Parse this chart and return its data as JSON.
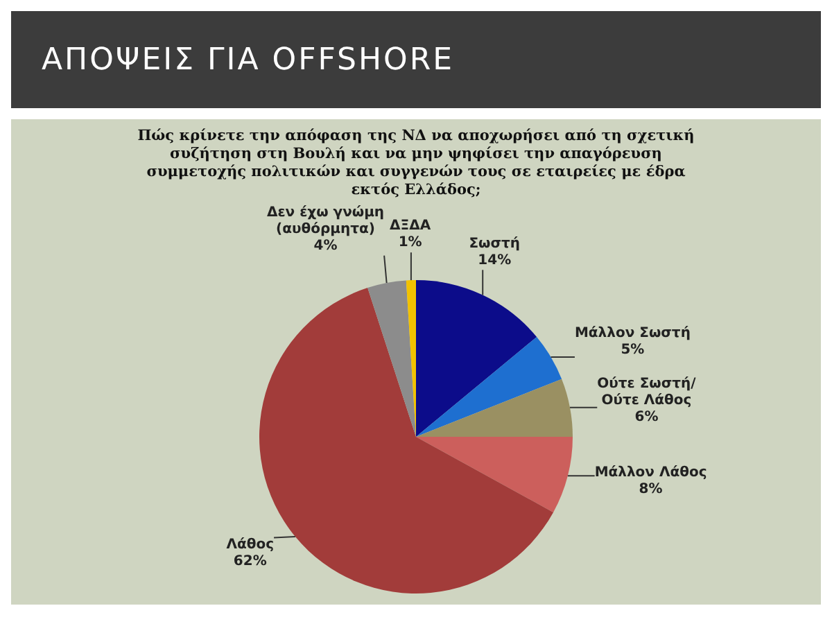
{
  "chart_data": {
    "type": "pie",
    "title": "ΑΠΟΨΕΙΣ ΓΙΑ OFFSHORE",
    "subtitle": "Πώς κρίνετε την απόφαση της ΝΔ να αποχωρήσει από τη σχετική συζήτηση στη Βουλή και να μην ψηφίσει την απαγόρευση συμμετοχής πολιτικών και συγγενών τους σε εταιρείες με έδρα εκτός Ελλάδος;",
    "categories": [
      "Σωστή",
      "Μάλλον Σωστή",
      "Ούτε Σωστή/ Ούτε Λάθος",
      "Μάλλον Λάθος",
      "Λάθος",
      "Δεν έχω γνώμη (αυθόρμητα)",
      "ΔΞΔΑ"
    ],
    "values": [
      14,
      5,
      6,
      8,
      62,
      4,
      1
    ],
    "colors": [
      "#0c0c8a",
      "#1e6fd0",
      "#9a9062",
      "#cc5f5c",
      "#a23c3a",
      "#8c8c8c",
      "#f2c200"
    ],
    "value_labels": [
      "14%",
      "5%",
      "6%",
      "8%",
      "62%",
      "4%",
      "1%"
    ],
    "legend": false
  }
}
